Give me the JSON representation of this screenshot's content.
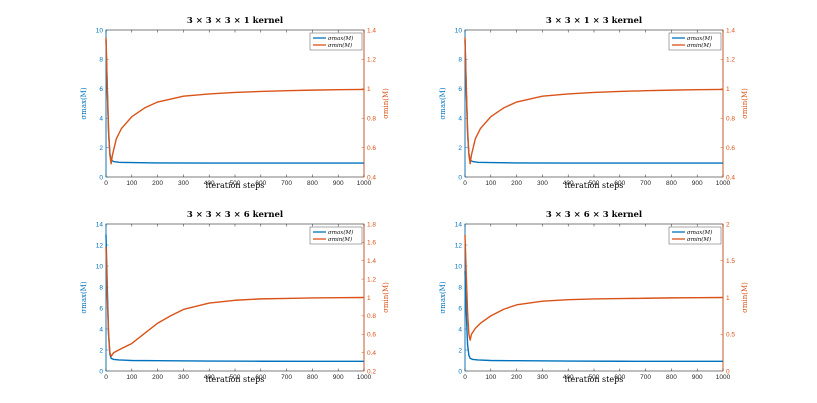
{
  "colors": {
    "left_axis": "#0072BD",
    "right_axis": "#D95319",
    "sigma_max_line": "#0072BD",
    "sigma_min_line": "#D95319"
  },
  "chart_data": [
    {
      "type": "line",
      "title": "3 × 3 × 3 × 1 kernel",
      "xlabel": "iteration steps",
      "ylabel_left": "σmax(M)",
      "ylabel_right": "σmin(M)",
      "xlim": [
        0,
        1000
      ],
      "xticks": [
        0,
        100,
        200,
        300,
        400,
        500,
        600,
        700,
        800,
        900,
        1000
      ],
      "ylim_left": [
        0,
        10
      ],
      "yticks_left": [
        0,
        2,
        4,
        6,
        8,
        10
      ],
      "ylim_right": [
        0.4,
        1.4
      ],
      "yticks_right": [
        0.4,
        0.6,
        0.8,
        1,
        1.2,
        1.4
      ],
      "legend": [
        "σmax(M)",
        "σmin(M)"
      ],
      "series": [
        {
          "name": "σmax(M)",
          "axis": "left",
          "x": [
            0,
            5,
            10,
            15,
            20,
            30,
            50,
            100,
            200,
            400,
            600,
            800,
            1000
          ],
          "values": [
            9.3,
            6.0,
            3.0,
            1.6,
            1.15,
            1.05,
            1.0,
            0.98,
            0.96,
            0.95,
            0.95,
            0.95,
            0.95
          ]
        },
        {
          "name": "σmin(M)",
          "axis": "right",
          "x": [
            0,
            5,
            10,
            15,
            20,
            25,
            40,
            60,
            100,
            150,
            200,
            300,
            400,
            500,
            600,
            700,
            800,
            900,
            1000
          ],
          "values": [
            1.35,
            1.0,
            0.72,
            0.55,
            0.49,
            0.55,
            0.66,
            0.73,
            0.81,
            0.87,
            0.91,
            0.95,
            0.965,
            0.975,
            0.982,
            0.987,
            0.991,
            0.994,
            0.996
          ]
        }
      ]
    },
    {
      "type": "line",
      "title": "3 × 3 × 1 × 3 kernel",
      "xlabel": "iteration steps",
      "ylabel_left": "σmax(M)",
      "ylabel_right": "σmin(M)",
      "xlim": [
        0,
        1000
      ],
      "xticks": [
        0,
        100,
        200,
        300,
        400,
        500,
        600,
        700,
        800,
        900,
        1000
      ],
      "ylim_left": [
        0,
        10
      ],
      "yticks_left": [
        0,
        2,
        4,
        6,
        8,
        10
      ],
      "ylim_right": [
        0.4,
        1.4
      ],
      "yticks_right": [
        0.4,
        0.6,
        0.8,
        1,
        1.2,
        1.4
      ],
      "legend": [
        "σmax(M)",
        "σmin(M)"
      ],
      "series": [
        {
          "name": "σmax(M)",
          "axis": "left",
          "x": [
            0,
            5,
            10,
            15,
            20,
            30,
            50,
            100,
            200,
            400,
            600,
            800,
            1000
          ],
          "values": [
            9.3,
            6.0,
            3.0,
            1.6,
            1.15,
            1.05,
            1.0,
            0.98,
            0.96,
            0.95,
            0.95,
            0.95,
            0.95
          ]
        },
        {
          "name": "σmin(M)",
          "axis": "right",
          "x": [
            0,
            5,
            10,
            15,
            20,
            25,
            40,
            60,
            100,
            150,
            200,
            300,
            400,
            500,
            600,
            700,
            800,
            900,
            1000
          ],
          "values": [
            1.35,
            1.0,
            0.72,
            0.55,
            0.49,
            0.55,
            0.66,
            0.73,
            0.81,
            0.87,
            0.91,
            0.95,
            0.965,
            0.975,
            0.982,
            0.987,
            0.991,
            0.994,
            0.996
          ]
        }
      ]
    },
    {
      "type": "line",
      "title": "3 × 3 × 3 × 6 kernel",
      "xlabel": "iteration steps",
      "ylabel_left": "σmax(M)",
      "ylabel_right": "σmin(M)",
      "xlim": [
        0,
        1000
      ],
      "xticks": [
        0,
        100,
        200,
        300,
        400,
        500,
        600,
        700,
        800,
        900,
        1000
      ],
      "ylim_left": [
        0,
        14
      ],
      "yticks_left": [
        0,
        2,
        4,
        6,
        8,
        10,
        12,
        14
      ],
      "ylim_right": [
        0.2,
        1.8
      ],
      "yticks_right": [
        0.2,
        0.4,
        0.6,
        0.8,
        1,
        1.2,
        1.4,
        1.6,
        1.8
      ],
      "legend": [
        "σmax(M)",
        "σmin(M)"
      ],
      "series": [
        {
          "name": "σmax(M)",
          "axis": "left",
          "x": [
            0,
            5,
            10,
            15,
            20,
            30,
            50,
            100,
            200,
            400,
            600,
            800,
            1000
          ],
          "values": [
            13.0,
            8.0,
            3.5,
            1.6,
            1.2,
            1.1,
            1.05,
            1.0,
            0.98,
            0.95,
            0.93,
            0.92,
            0.92
          ]
        },
        {
          "name": "σmin(M)",
          "axis": "right",
          "x": [
            0,
            5,
            10,
            15,
            20,
            30,
            50,
            100,
            150,
            200,
            250,
            300,
            400,
            500,
            600,
            700,
            800,
            900,
            1000
          ],
          "values": [
            1.55,
            1.0,
            0.6,
            0.4,
            0.36,
            0.4,
            0.43,
            0.5,
            0.61,
            0.72,
            0.8,
            0.87,
            0.94,
            0.97,
            0.985,
            0.99,
            0.995,
            0.998,
            1.0
          ]
        }
      ]
    },
    {
      "type": "line",
      "title": "3 × 3 × 6 × 3 kernel",
      "xlabel": "iteration steps",
      "ylabel_left": "σmax(M)",
      "ylabel_right": "σmin(M)",
      "xlim": [
        0,
        1000
      ],
      "xticks": [
        0,
        100,
        200,
        300,
        400,
        500,
        600,
        700,
        800,
        900,
        1000
      ],
      "ylim_left": [
        0,
        14
      ],
      "yticks_left": [
        0,
        2,
        4,
        6,
        8,
        10,
        12,
        14
      ],
      "ylim_right": [
        0,
        2
      ],
      "yticks_right": [
        0,
        0.5,
        1,
        1.5,
        2
      ],
      "legend": [
        "σmax(M)",
        "σmin(M)"
      ],
      "series": [
        {
          "name": "σmax(M)",
          "axis": "left",
          "x": [
            0,
            5,
            10,
            15,
            20,
            30,
            50,
            100,
            200,
            400,
            600,
            800,
            1000
          ],
          "values": [
            9.5,
            5.5,
            2.5,
            1.5,
            1.2,
            1.1,
            1.05,
            1.0,
            0.98,
            0.95,
            0.93,
            0.92,
            0.92
          ]
        },
        {
          "name": "σmin(M)",
          "axis": "right",
          "x": [
            0,
            5,
            10,
            15,
            20,
            25,
            40,
            60,
            100,
            150,
            200,
            300,
            400,
            500,
            600,
            700,
            800,
            900,
            1000
          ],
          "values": [
            1.85,
            1.3,
            0.8,
            0.5,
            0.42,
            0.5,
            0.58,
            0.65,
            0.75,
            0.84,
            0.9,
            0.95,
            0.97,
            0.98,
            0.985,
            0.99,
            0.995,
            0.998,
            1.0
          ]
        }
      ]
    }
  ]
}
